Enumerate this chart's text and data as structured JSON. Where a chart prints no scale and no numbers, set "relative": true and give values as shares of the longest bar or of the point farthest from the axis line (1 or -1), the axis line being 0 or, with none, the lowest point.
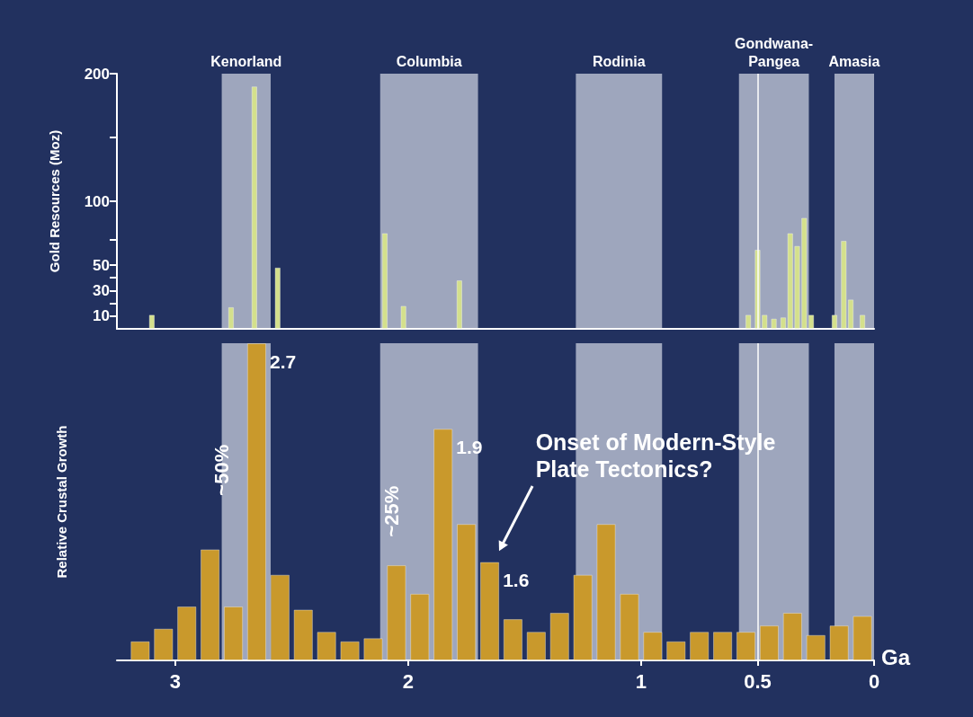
{
  "chart_data": [
    {
      "type": "bar",
      "ylabel": "Gold Resources (Moz)",
      "color": "#d4e08c",
      "x": [
        3.1,
        2.76,
        2.66,
        2.56,
        2.1,
        2.02,
        1.78,
        0.54,
        0.5,
        0.47,
        0.43,
        0.39,
        0.36,
        0.33,
        0.3,
        0.27,
        0.17,
        0.13,
        0.1,
        0.05
      ],
      "values": [
        11,
        17,
        190,
        48,
        75,
        18,
        38,
        11,
        62,
        11,
        8,
        9,
        75,
        65,
        87,
        11,
        11,
        69,
        23,
        11
      ],
      "xlim": [
        3.25,
        0
      ],
      "ylim": [
        0,
        200
      ],
      "yticks": [
        10,
        {
          "value": 20,
          "label": null
        },
        30,
        {
          "value": 40,
          "label": null
        },
        50,
        {
          "value": 70,
          "label": null
        },
        100,
        {
          "value": 150,
          "label": null
        },
        200
      ],
      "tick_labels": "y",
      "bands": [
        {
          "axis": "x",
          "from": 2.8,
          "to": 2.59,
          "label": "Kenorland",
          "color": "#9ea6bd"
        },
        {
          "axis": "x",
          "from": 2.12,
          "to": 1.7,
          "label": "Columbia",
          "color": "#9ea6bd"
        },
        {
          "axis": "x",
          "from": 1.28,
          "to": 0.91,
          "label": "Rodinia",
          "color": "#9ea6bd"
        },
        {
          "axis": "x",
          "from": 0.58,
          "to": 0.28,
          "label": "Gondwana-Pangea",
          "color": "#9ea6bd"
        },
        {
          "axis": "x",
          "from": 0.17,
          "to": 0,
          "label": "Amasia",
          "color": "#9ea6bd"
        }
      ],
      "ref_lines": [
        {
          "axis": "x",
          "value": 0.5,
          "label": null,
          "color": "#ffffff"
        }
      ]
    },
    {
      "type": "bar",
      "relative": true,
      "xlabel": "Ga",
      "ylabel": "Relative Crustal Growth",
      "color": "#c9992c",
      "x": [
        3.15,
        3.05,
        2.95,
        2.85,
        2.75,
        2.65,
        2.55,
        2.45,
        2.35,
        2.25,
        2.15,
        2.05,
        1.95,
        1.85,
        1.75,
        1.65,
        1.55,
        1.45,
        1.35,
        1.25,
        1.15,
        1.05,
        0.95,
        0.85,
        0.75,
        0.65,
        0.55,
        0.45,
        0.35,
        0.25,
        0.15,
        0.05
      ],
      "values": [
        0.06,
        0.1,
        0.17,
        0.35,
        0.17,
        1,
        0.27,
        0.16,
        0.09,
        0.06,
        0.07,
        0.3,
        0.21,
        0.73,
        0.43,
        0.31,
        0.13,
        0.09,
        0.15,
        0.27,
        0.43,
        0.21,
        0.09,
        0.06,
        0.09,
        0.09,
        0.09,
        0.11,
        0.15,
        0.08,
        0.11,
        0.14
      ],
      "xlim": [
        3.25,
        0
      ],
      "xticks": [
        3,
        2,
        1,
        0.5,
        0
      ],
      "tick_labels": "x",
      "bands": [
        {
          "axis": "x",
          "from": 2.8,
          "to": 2.59,
          "label": null,
          "color": "#9ea6bd"
        },
        {
          "axis": "x",
          "from": 2.12,
          "to": 1.7,
          "label": null,
          "color": "#9ea6bd"
        },
        {
          "axis": "x",
          "from": 1.28,
          "to": 0.91,
          "label": null,
          "color": "#9ea6bd"
        },
        {
          "axis": "x",
          "from": 0.58,
          "to": 0.28,
          "label": null,
          "color": "#9ea6bd"
        },
        {
          "axis": "x",
          "from": 0.17,
          "to": 0,
          "label": null,
          "color": "#9ea6bd"
        }
      ],
      "ref_lines": [
        {
          "axis": "x",
          "value": 0.5,
          "label": null,
          "color": "#ffffff"
        }
      ],
      "annotations": [
        {
          "text": "2.7",
          "x": 2.65,
          "y": 1
        },
        {
          "text": "1.9",
          "x": 1.85,
          "y": 0.73
        },
        {
          "text": "1.6",
          "x": 1.65,
          "y": 0.31
        },
        "~50%",
        "~25%",
        "Onset of Modern-Style Plate Tectonics?"
      ]
    }
  ]
}
